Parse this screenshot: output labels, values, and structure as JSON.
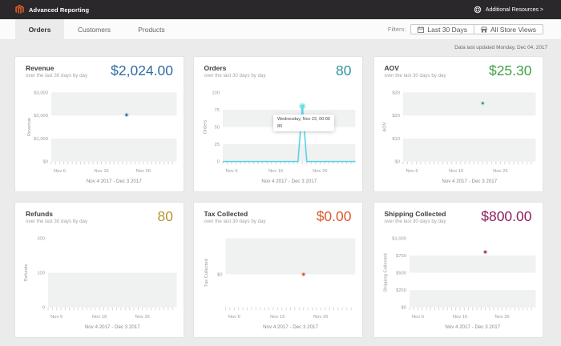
{
  "header": {
    "title": "Advanced Reporting",
    "resources_label": "Additional Resources >",
    "logo_color": "#f26322",
    "bar_color": "#2a282b"
  },
  "tabs": [
    {
      "label": "Orders",
      "active": true
    },
    {
      "label": "Customers",
      "active": false
    },
    {
      "label": "Products",
      "active": false
    }
  ],
  "filters": {
    "label": "Filters:",
    "buttons": [
      {
        "icon": "calendar-icon",
        "label": "Last 30 Days"
      },
      {
        "icon": "store-icon",
        "label": "All Store Views"
      }
    ]
  },
  "status_line": "Data last updated Monday, Dec 04, 2017",
  "chart_data": [
    {
      "id": "revenue",
      "type": "line",
      "title": "Revenue",
      "subtitle": "over the last 30 days by day",
      "value": "$2,024.00",
      "value_color": "#2e6ca5",
      "series_color": "#2a5d91",
      "halo_color": "rgba(84,144,199,0.3)",
      "y_axis_label": "Revenue",
      "ymin": 0,
      "ymax": 3000,
      "y_ticks": [
        {
          "label": "$3,000",
          "value": 3000
        },
        {
          "label": "$2,000",
          "value": 2000
        },
        {
          "label": "$1,000",
          "value": 1000
        },
        {
          "label": "$0",
          "value": 0
        }
      ],
      "days": 30,
      "x_tick_labels": [
        {
          "label": "Nov 6",
          "day": 2
        },
        {
          "label": "Nov 16",
          "day": 12
        },
        {
          "label": "Nov 26",
          "day": 22
        }
      ],
      "caption": "Nov 4 2017 - Dec 3 2017",
      "points": [
        {
          "date": "Nov 22",
          "day": 18,
          "value": 2024
        }
      ],
      "draw_baseline": false
    },
    {
      "id": "orders",
      "type": "line",
      "title": "Orders",
      "subtitle": "over the last 30 days by day",
      "value": "80",
      "value_color": "#2d959e",
      "series_color": "#48d2e2",
      "halo_color": "rgba(72,210,226,0.35)",
      "y_axis_label": "Orders",
      "ymin": 0,
      "ymax": 100,
      "y_ticks": [
        {
          "label": "100",
          "value": 100
        },
        {
          "label": "75",
          "value": 75
        },
        {
          "label": "50",
          "value": 50
        },
        {
          "label": "25",
          "value": 25
        },
        {
          "label": "0",
          "value": 0
        }
      ],
      "days": 30,
      "x_tick_labels": [
        {
          "label": "Nov 6",
          "day": 2
        },
        {
          "label": "Nov 16",
          "day": 12
        },
        {
          "label": "Nov 26",
          "day": 22
        }
      ],
      "caption": "Nov 4 2017 - Dec 3 2017",
      "points": [
        {
          "date": "Nov 22",
          "day": 18,
          "value": 80
        }
      ],
      "draw_baseline": true,
      "baseline_value": 0,
      "tooltip": {
        "title": "Wednesday, Nov 22, 00:00",
        "value": "80"
      }
    },
    {
      "id": "aov",
      "type": "line",
      "title": "AOV",
      "subtitle": "over the last 30 days by day",
      "value": "$25.30",
      "value_color": "#42a146",
      "series_color": "#3d8e68",
      "halo_color": "rgba(120,214,178,0.35)",
      "y_axis_label": "AOV",
      "ymin": 0,
      "ymax": 30,
      "y_ticks": [
        {
          "label": "$30",
          "value": 30
        },
        {
          "label": "$20",
          "value": 20
        },
        {
          "label": "$10",
          "value": 10
        },
        {
          "label": "$0",
          "value": 0
        }
      ],
      "days": 30,
      "x_tick_labels": [
        {
          "label": "Nov 6",
          "day": 2
        },
        {
          "label": "Nov 16",
          "day": 12
        },
        {
          "label": "Nov 26",
          "day": 22
        }
      ],
      "caption": "Nov 4 2017 - Dec 3 2017",
      "points": [
        {
          "date": "Nov 22",
          "day": 18,
          "value": 25.3
        }
      ],
      "draw_baseline": false
    },
    {
      "id": "refunds",
      "type": "line",
      "title": "Refunds",
      "subtitle": "over the last 30 days by day",
      "value": "80",
      "value_color": "#b49533",
      "series_color": "#b49533",
      "halo_color": "rgba(180,149,51,0.3)",
      "y_axis_label": "Refunds",
      "ymin": 0,
      "ymax": 200,
      "y_ticks": [
        {
          "label": "200",
          "value": 200
        },
        {
          "label": "100",
          "value": 100
        },
        {
          "label": "0",
          "value": 0
        }
      ],
      "days": 30,
      "x_tick_labels": [
        {
          "label": "Nov 6",
          "day": 2
        },
        {
          "label": "Nov 16",
          "day": 12
        },
        {
          "label": "Nov 26",
          "day": 22
        }
      ],
      "caption": "Nov 4 2017 - Dec 3 2017",
      "points": [],
      "draw_baseline": false
    },
    {
      "id": "tax",
      "type": "line",
      "title": "Tax Collected",
      "subtitle": "over the last 30 days by day",
      "value": "$0.00",
      "value_color": "#d95b30",
      "series_color": "#d14a24",
      "halo_color": "rgba(209,74,36,0.25)",
      "y_axis_label": "Tax Collected",
      "ymin": -0.915,
      "ymax": 1,
      "y_ticks": [
        {
          "label": "$0",
          "value": 0
        }
      ],
      "days": 30,
      "x_tick_labels": [
        {
          "label": "Nov 6",
          "day": 2
        },
        {
          "label": "Nov 16",
          "day": 12
        },
        {
          "label": "Nov 26",
          "day": 22
        }
      ],
      "caption": "Nov 4 2017 - Dec 3 2017",
      "points": [
        {
          "date": "Nov 22",
          "day": 18,
          "value": 0
        }
      ],
      "draw_baseline": false
    },
    {
      "id": "shipping",
      "type": "line",
      "title": "Shipping Collected",
      "subtitle": "over the last 30 days by day",
      "value": "$800.00",
      "value_color": "#8f1f60",
      "series_color": "#8f1f60",
      "halo_color": "rgba(143,31,96,0.25)",
      "y_axis_label": "Shipping Collected",
      "ymin": 0,
      "ymax": 1000,
      "y_ticks": [
        {
          "label": "$1,000",
          "value": 1000
        },
        {
          "label": "$750",
          "value": 750
        },
        {
          "label": "$500",
          "value": 500
        },
        {
          "label": "$250",
          "value": 250
        },
        {
          "label": "$0",
          "value": 0
        }
      ],
      "days": 30,
      "x_tick_labels": [
        {
          "label": "Nov 6",
          "day": 2
        },
        {
          "label": "Nov 16",
          "day": 12
        },
        {
          "label": "Nov 26",
          "day": 22
        }
      ],
      "caption": "Nov 4 2017 - Dec 3 2017",
      "points": [
        {
          "date": "Nov 22",
          "day": 18,
          "value": 800
        }
      ],
      "draw_baseline": false
    }
  ]
}
